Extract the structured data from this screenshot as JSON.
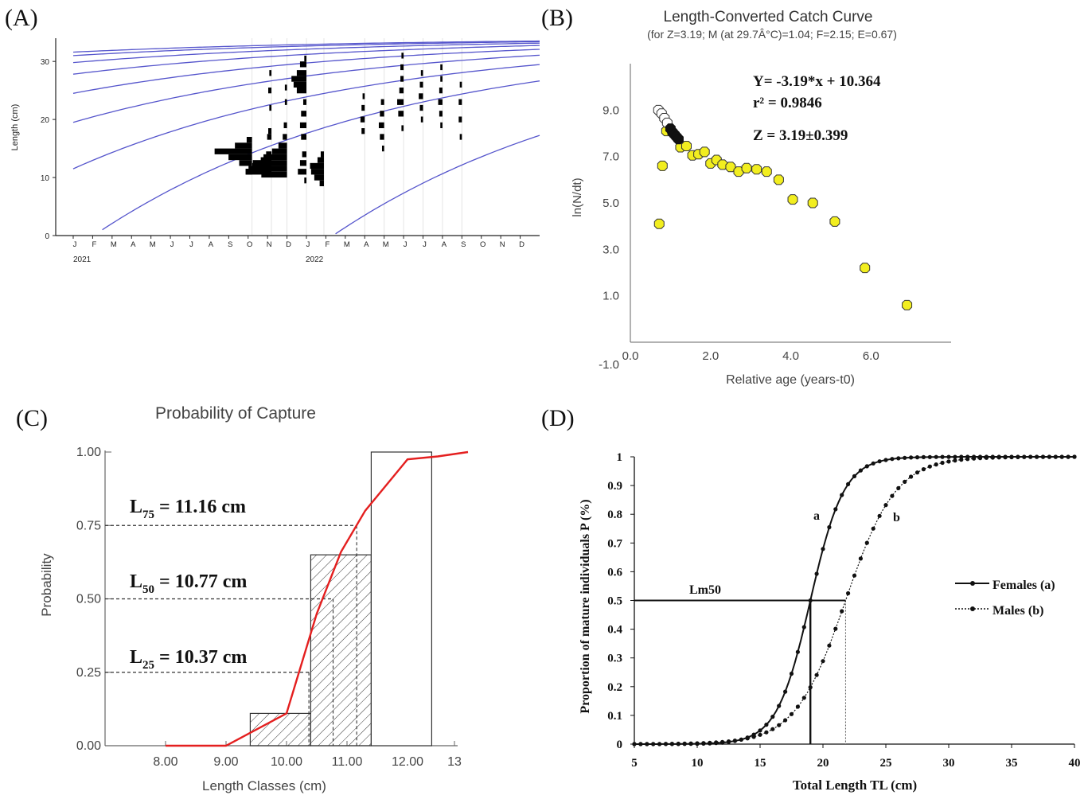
{
  "chart_data": [
    {
      "id": "A",
      "panel_label": "(A)",
      "type": "line",
      "subtype": "length-frequency with growth curves",
      "ylabel": "Length (cm)",
      "ylim": [
        0,
        34
      ],
      "yticks": [
        "0",
        "10",
        "20",
        "30"
      ],
      "months": [
        "J",
        "F",
        "M",
        "A",
        "M",
        "J",
        "J",
        "A",
        "S",
        "O",
        "N",
        "D",
        "J",
        "F",
        "M",
        "A",
        "M",
        "J",
        "J",
        "A",
        "S",
        "O",
        "N",
        "D"
      ],
      "years": [
        "2021",
        "2022"
      ],
      "growth_curves_start_lengths": [
        1,
        11.5,
        19.5,
        24.5,
        27.8,
        29.8,
        31.0,
        31.6
      ],
      "samples": [
        {
          "month": 9.2,
          "bins": [
            [
              15.5,
              1.6
            ],
            [
              14.5,
              3.5
            ],
            [
              13.5,
              2.2
            ],
            [
              12.5,
              1.2
            ],
            [
              11,
              0.6
            ],
            [
              16.5,
              0.5
            ]
          ]
        },
        {
          "month": 10.2,
          "bins": [
            [
              11,
              2.4
            ],
            [
              12,
              1.8
            ],
            [
              13,
              1.0
            ],
            [
              14,
              0.5
            ],
            [
              17,
              0.4
            ],
            [
              18,
              0.3
            ],
            [
              22,
              0.2
            ],
            [
              25,
              0.3
            ],
            [
              28,
              0.2
            ]
          ]
        },
        {
          "month": 11.0,
          "bins": [
            [
              10.5,
              2.4
            ],
            [
              11.5,
              3.6
            ],
            [
              12.5,
              3.2
            ],
            [
              13.5,
              2.2
            ],
            [
              14.5,
              1.4
            ],
            [
              15.5,
              0.8
            ],
            [
              17,
              0.4
            ],
            [
              19,
              0.3
            ],
            [
              23,
              0.2
            ],
            [
              25.5,
              0.2
            ]
          ]
        },
        {
          "month": 12.0,
          "bins": [
            [
              9.5,
              0.2
            ],
            [
              11,
              0.8
            ],
            [
              12.5,
              0.6
            ],
            [
              14,
              0.4
            ],
            [
              17,
              0.5
            ],
            [
              19,
              0.6
            ],
            [
              21,
              0.5
            ],
            [
              23,
              0.3
            ],
            [
              25,
              0.9
            ],
            [
              26,
              1.2
            ],
            [
              27,
              1.4
            ],
            [
              28,
              0.9
            ],
            [
              29.5,
              0.6
            ],
            [
              30.5,
              0.2
            ]
          ]
        },
        {
          "month": 12.9,
          "bins": [
            [
              9,
              0.4
            ],
            [
              10,
              0.9
            ],
            [
              11,
              1.2
            ],
            [
              12,
              1.3
            ],
            [
              13,
              0.6
            ],
            [
              14,
              0.3
            ]
          ]
        },
        {
          "month": 15.0,
          "bins": [
            [
              18,
              0.3
            ],
            [
              20,
              0.4
            ],
            [
              22,
              0.3
            ],
            [
              24,
              0.2
            ]
          ]
        },
        {
          "month": 16.0,
          "bins": [
            [
              15,
              0.2
            ],
            [
              17,
              0.4
            ],
            [
              19,
              0.5
            ],
            [
              21,
              0.4
            ],
            [
              23,
              0.3
            ]
          ]
        },
        {
          "month": 17.0,
          "bins": [
            [
              18.5,
              0.2
            ],
            [
              21,
              0.5
            ],
            [
              23,
              0.6
            ],
            [
              25,
              0.4
            ],
            [
              27,
              0.3
            ],
            [
              29,
              0.3
            ],
            [
              31,
              0.2
            ]
          ]
        },
        {
          "month": 18.0,
          "bins": [
            [
              20,
              0.2
            ],
            [
              22,
              0.3
            ],
            [
              24,
              0.4
            ],
            [
              26,
              0.3
            ],
            [
              28,
              0.2
            ]
          ]
        },
        {
          "month": 19.0,
          "bins": [
            [
              19,
              0.2
            ],
            [
              21,
              0.3
            ],
            [
              23,
              0.4
            ],
            [
              25,
              0.3
            ],
            [
              27,
              0.2
            ],
            [
              29,
              0.2
            ]
          ]
        },
        {
          "month": 20.0,
          "bins": [
            [
              17,
              0.2
            ],
            [
              20,
              0.3
            ],
            [
              23,
              0.3
            ],
            [
              26,
              0.2
            ]
          ]
        }
      ],
      "sample_months": [
        "2021-10",
        "2021-11",
        "2021-12",
        "2022-01",
        "2022-02",
        "2022-04",
        "2022-05",
        "2022-06",
        "2022-07",
        "2022-08",
        "2022-09"
      ]
    },
    {
      "id": "B",
      "panel_label": "(B)",
      "type": "scatter",
      "title": "Length-Converted Catch Curve",
      "subtitle": "(for Z=3.19; M (at 29.7Â°C)=1.04; F=2.15; E=0.67)",
      "xlabel": "Relative age (years-t0)",
      "ylabel": "ln(N/dt)",
      "xlim": [
        0,
        8
      ],
      "ylim": [
        -1,
        11
      ],
      "xticks": [
        "0.0",
        "2.0",
        "4.0",
        "6.0"
      ],
      "yticks": [
        "-1.0",
        "1.0",
        "3.0",
        "5.0",
        "7.0",
        "9.0"
      ],
      "equation": "Y= -3.19*x + 10.364",
      "r2": "r² = 0.9846",
      "z_label": "Z = 3.19±0.399",
      "points_excluded": [
        [
          0.7,
          9.0
        ],
        [
          0.78,
          8.85
        ],
        [
          0.85,
          8.65
        ],
        [
          0.92,
          8.45
        ]
      ],
      "points_regression": [
        [
          1.0,
          8.2
        ],
        [
          1.05,
          8.05
        ],
        [
          1.1,
          7.95
        ],
        [
          1.15,
          7.85
        ],
        [
          1.2,
          7.75
        ]
      ],
      "points_other": [
        [
          0.72,
          4.1
        ],
        [
          0.8,
          6.6
        ],
        [
          0.9,
          8.1
        ],
        [
          1.25,
          7.4
        ],
        [
          1.4,
          7.45
        ],
        [
          1.55,
          7.05
        ],
        [
          1.7,
          7.1
        ],
        [
          1.85,
          7.2
        ],
        [
          2.0,
          6.7
        ],
        [
          2.15,
          6.85
        ],
        [
          2.3,
          6.65
        ],
        [
          2.5,
          6.55
        ],
        [
          2.7,
          6.35
        ],
        [
          2.9,
          6.5
        ],
        [
          3.15,
          6.45
        ],
        [
          3.4,
          6.35
        ],
        [
          3.7,
          6.0
        ],
        [
          4.05,
          5.15
        ],
        [
          4.55,
          5.0
        ],
        [
          5.1,
          4.2
        ],
        [
          5.85,
          2.2
        ],
        [
          6.9,
          0.6
        ]
      ]
    },
    {
      "id": "C",
      "panel_label": "(C)",
      "type": "line",
      "title": "Probability of Capture",
      "xlabel": "Length Classes (cm)",
      "ylabel": "Probability",
      "xlim": [
        7,
        13
      ],
      "ylim": [
        0,
        1
      ],
      "xticks": [
        "8.00",
        "9.00",
        "10.00",
        "11.00",
        "12.00",
        "13"
      ],
      "yticks": [
        "0.00",
        "0.25",
        "0.50",
        "0.75",
        "1.00"
      ],
      "bars": [
        {
          "x0": 9.4,
          "x1": 10.4,
          "value": 0.11
        },
        {
          "x0": 10.4,
          "x1": 11.4,
          "value": 0.65
        },
        {
          "x0": 11.4,
          "x1": 12.4,
          "value": 1.0
        }
      ],
      "curve_x": [
        8.0,
        9.0,
        10.0,
        10.5,
        10.9,
        11.3,
        12.0,
        12.5,
        13.0
      ],
      "curve_y": [
        0.0,
        0.0,
        0.11,
        0.45,
        0.66,
        0.8,
        0.975,
        0.985,
        1.0
      ],
      "L75": {
        "label": "L",
        "sub": "75",
        "text": " = 11.16 cm",
        "x": 11.16,
        "p": 0.75
      },
      "L50": {
        "label": "L",
        "sub": "50",
        "text": " = 10.77 cm",
        "x": 10.77,
        "p": 0.5
      },
      "L25": {
        "label": "L",
        "sub": "25",
        "text": " = 10.37 cm",
        "x": 10.37,
        "p": 0.25
      }
    },
    {
      "id": "D",
      "panel_label": "(D)",
      "type": "line",
      "xlabel": "Total Length TL (cm)",
      "ylabel": "Proportion of mature individuals P (%)",
      "xlim": [
        5,
        40
      ],
      "ylim": [
        0,
        1
      ],
      "xticks": [
        "5",
        "10",
        "15",
        "20",
        "25",
        "30",
        "35",
        "40"
      ],
      "yticks": [
        "0",
        "0.1",
        "0.2",
        "0.3",
        "0.4",
        "0.5",
        "0.6",
        "0.7",
        "0.8",
        "0.9",
        "1"
      ],
      "lm50_label": "Lm50",
      "series": [
        {
          "name": "Females (a)",
          "short": "a",
          "L50": 19.0,
          "k": 0.75
        },
        {
          "name": "Males (b)",
          "short": "b",
          "L50": 21.8,
          "k": 0.5
        }
      ]
    }
  ]
}
